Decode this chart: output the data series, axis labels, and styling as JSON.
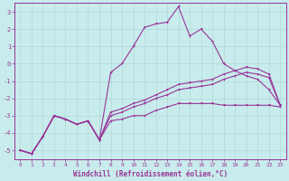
{
  "xlabel": "Windchill (Refroidissement éolien,°C)",
  "bg_color": "#c8ecec",
  "grid_color": "#b0d8d8",
  "line_color": "#993399",
  "xlim": [
    -0.5,
    23.5
  ],
  "ylim": [
    -5.5,
    3.5
  ],
  "yticks": [
    -5,
    -4,
    -3,
    -2,
    -1,
    0,
    1,
    2,
    3
  ],
  "xticks": [
    0,
    1,
    2,
    3,
    4,
    5,
    6,
    7,
    8,
    9,
    10,
    11,
    12,
    13,
    14,
    15,
    16,
    17,
    18,
    19,
    20,
    21,
    22,
    23
  ],
  "x": [
    0,
    1,
    2,
    3,
    4,
    5,
    6,
    7,
    8,
    9,
    10,
    11,
    12,
    13,
    14,
    15,
    16,
    17,
    18,
    19,
    20,
    21,
    22,
    23
  ],
  "series": [
    [
      -5.0,
      -5.2,
      -4.2,
      -3.0,
      -3.2,
      -3.5,
      -3.3,
      -4.4,
      -0.5,
      0.0,
      1.0,
      2.1,
      2.3,
      2.4,
      3.3,
      1.6,
      2.0,
      1.3,
      0.0,
      -0.4,
      -0.7,
      -0.9,
      -1.5,
      -2.4
    ],
    [
      -5.0,
      -5.2,
      -4.2,
      -3.0,
      -3.2,
      -3.5,
      -3.3,
      -4.4,
      -3.0,
      -2.8,
      -2.5,
      -2.3,
      -2.0,
      -1.8,
      -1.5,
      -1.4,
      -1.3,
      -1.2,
      -0.9,
      -0.7,
      -0.5,
      -0.6,
      -0.8,
      -2.4
    ],
    [
      -5.0,
      -5.2,
      -4.2,
      -3.0,
      -3.2,
      -3.5,
      -3.3,
      -4.4,
      -2.8,
      -2.6,
      -2.3,
      -2.1,
      -1.8,
      -1.5,
      -1.2,
      -1.1,
      -1.0,
      -0.9,
      -0.6,
      -0.4,
      -0.2,
      -0.3,
      -0.6,
      -2.4
    ],
    [
      -5.0,
      -5.2,
      -4.2,
      -3.0,
      -3.2,
      -3.5,
      -3.3,
      -4.4,
      -3.3,
      -3.2,
      -3.0,
      -3.0,
      -2.7,
      -2.5,
      -2.3,
      -2.3,
      -2.3,
      -2.3,
      -2.4,
      -2.4,
      -2.4,
      -2.4,
      -2.4,
      -2.5
    ]
  ],
  "xlabel_fontsize": 5.5,
  "tick_fontsize": 4.5,
  "marker_size": 2.0,
  "linewidth": 0.8
}
